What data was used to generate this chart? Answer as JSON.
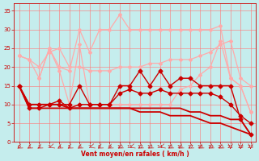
{
  "xlabel": "Vent moyen/en rafales ( km/h )",
  "xlim": [
    -0.5,
    23.5
  ],
  "ylim": [
    0,
    37
  ],
  "yticks": [
    0,
    5,
    10,
    15,
    20,
    25,
    30,
    35
  ],
  "xticks": [
    0,
    1,
    2,
    3,
    4,
    5,
    6,
    7,
    8,
    9,
    10,
    11,
    12,
    13,
    14,
    15,
    16,
    17,
    18,
    19,
    20,
    21,
    22,
    23
  ],
  "background_color": "#c5eded",
  "grid_color": "#ff7777",
  "lines": [
    {
      "x": [
        0,
        1,
        2,
        3,
        4,
        5,
        6,
        7,
        8,
        9,
        10,
        11,
        12,
        13,
        14,
        15,
        16,
        17,
        18,
        19,
        20,
        21,
        22,
        23
      ],
      "y": [
        23,
        22,
        17,
        25,
        20,
        19,
        30,
        24,
        30,
        30,
        34,
        30,
        30,
        30,
        30,
        30,
        30,
        30,
        30,
        30,
        31,
        17,
        15,
        8
      ],
      "color": "#ffaaaa",
      "marker": "D",
      "linewidth": 0.9,
      "markersize": 2.0
    },
    {
      "x": [
        0,
        1,
        2,
        3,
        4,
        5,
        6,
        7,
        8,
        9,
        10,
        11,
        12,
        13,
        14,
        15,
        16,
        17,
        18,
        19,
        20,
        21,
        22,
        23
      ],
      "y": [
        23,
        22,
        20,
        24,
        25,
        20,
        20,
        19,
        19,
        19,
        20,
        20,
        20,
        21,
        21,
        22,
        22,
        22,
        23,
        24,
        26,
        27,
        17,
        15
      ],
      "color": "#ffaaaa",
      "marker": "D",
      "linewidth": 0.9,
      "markersize": 2.0
    },
    {
      "x": [
        2,
        3,
        4,
        5,
        6,
        7,
        8,
        9,
        10,
        11,
        12,
        13,
        14,
        15,
        16,
        17,
        18,
        19,
        20,
        21,
        22,
        23
      ],
      "y": [
        17,
        25,
        19,
        10,
        26,
        10,
        10,
        10,
        10,
        10,
        10,
        10,
        10,
        10,
        14,
        15,
        18,
        20,
        27,
        17,
        15,
        8
      ],
      "color": "#ffaaaa",
      "marker": "D",
      "linewidth": 0.9,
      "markersize": 2.0
    },
    {
      "x": [
        0,
        1,
        2,
        3,
        4,
        5,
        6,
        7,
        8,
        9,
        10,
        11,
        12,
        13,
        14,
        15,
        16,
        17,
        18,
        19,
        20,
        21,
        22,
        23
      ],
      "y": [
        15,
        10,
        10,
        10,
        10,
        10,
        15,
        10,
        10,
        10,
        15,
        15,
        19,
        15,
        19,
        15,
        17,
        17,
        15,
        15,
        15,
        15,
        6,
        2
      ],
      "color": "#cc0000",
      "marker": "D",
      "linewidth": 1.0,
      "markersize": 2.5
    },
    {
      "x": [
        0,
        1,
        2,
        3,
        4,
        5,
        6,
        7,
        8,
        9,
        10,
        11,
        12,
        13,
        14,
        15,
        16,
        17,
        18,
        19,
        20,
        21,
        22,
        23
      ],
      "y": [
        15,
        9,
        9,
        10,
        11,
        9,
        10,
        10,
        10,
        10,
        13,
        14,
        13,
        13,
        14,
        13,
        13,
        13,
        13,
        13,
        12,
        10,
        7,
        5
      ],
      "color": "#cc0000",
      "marker": "D",
      "linewidth": 1.0,
      "markersize": 2.5
    },
    {
      "x": [
        0,
        1,
        2,
        3,
        4,
        5,
        6,
        7,
        8,
        9,
        10,
        11,
        12,
        13,
        14,
        15,
        16,
        17,
        18,
        19,
        20,
        21,
        22,
        23
      ],
      "y": [
        15,
        10,
        10,
        10,
        10,
        9,
        9,
        9,
        9,
        9,
        9,
        9,
        9,
        9,
        9,
        9,
        9,
        8,
        8,
        7,
        7,
        6,
        6,
        2
      ],
      "color": "#cc0000",
      "marker": null,
      "linewidth": 1.3,
      "markersize": 0
    },
    {
      "x": [
        0,
        1,
        2,
        3,
        4,
        5,
        6,
        7,
        8,
        9,
        10,
        11,
        12,
        13,
        14,
        15,
        16,
        17,
        18,
        19,
        20,
        21,
        22,
        23
      ],
      "y": [
        15,
        9,
        9,
        9,
        9,
        9,
        9,
        9,
        9,
        9,
        9,
        9,
        8,
        8,
        8,
        7,
        7,
        7,
        6,
        5,
        5,
        4,
        3,
        2
      ],
      "color": "#cc0000",
      "marker": null,
      "linewidth": 1.3,
      "markersize": 0
    }
  ],
  "arrow_angles": [
    -135,
    -135,
    -135,
    -150,
    -135,
    -135,
    -135,
    -150,
    -135,
    -135,
    -135,
    -150,
    -135,
    -135,
    -150,
    -135,
    -135,
    -135,
    -135,
    -135,
    -135,
    -90,
    -90,
    -90
  ]
}
